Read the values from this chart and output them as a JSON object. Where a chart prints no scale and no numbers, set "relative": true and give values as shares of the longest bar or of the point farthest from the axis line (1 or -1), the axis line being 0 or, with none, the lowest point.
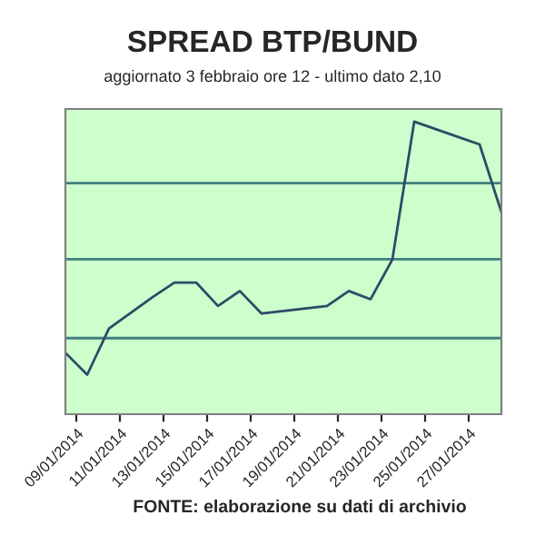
{
  "chart_data": {
    "type": "line",
    "title": "SPREAD BTP/BUND",
    "subtitle": "aggiornato 3 febbraio ore 12 - ultimo dato 2,10",
    "annotations": [
      "FONTE: elaborazione su dati di archivio"
    ],
    "relative": true,
    "x": [
      "2014-01-08T12:00",
      "2014-01-09T12:00",
      "2014-01-10T12:00",
      "2014-01-12T12:00",
      "2014-01-13T12:00",
      "2014-01-14T12:00",
      "2014-01-15T12:00",
      "2014-01-16T12:00",
      "2014-01-17T12:00",
      "2014-01-20T12:00",
      "2014-01-21T12:00",
      "2014-01-22T12:00",
      "2014-01-23T12:00",
      "2014-01-24T12:00",
      "2014-01-27T12:00",
      "2014-01-28T12:00"
    ],
    "series": [
      {
        "color": "#2f4a66",
        "values": [
          0.21,
          0.135,
          0.293,
          0.4,
          0.45,
          0.45,
          0.37,
          0.421,
          0.344,
          0.37,
          0.421,
          0.393,
          0.529,
          1,
          0.922,
          0.691
        ]
      }
    ],
    "xlim": [
      "2014-01-08T12:00",
      "2014-01-28T12:00"
    ],
    "ref_lines": [
      {
        "axis": "y",
        "value": 0.26,
        "color": "#3f7f7f"
      },
      {
        "axis": "y",
        "value": 0.53,
        "color": "#3f7f7f"
      },
      {
        "axis": "y",
        "value": 0.79,
        "color": "#3f7f7f"
      }
    ],
    "xticks": [
      {
        "value": "2014-01-09",
        "label": "09/01/2014"
      },
      {
        "value": "2014-01-11",
        "label": "11/01/2014"
      },
      {
        "value": "2014-01-13",
        "label": "13/01/2014"
      },
      {
        "value": "2014-01-15",
        "label": "15/01/2014"
      },
      {
        "value": "2014-01-17",
        "label": "17/01/2014"
      },
      {
        "value": "2014-01-19",
        "label": "19/01/2014"
      },
      {
        "value": "2014-01-21",
        "label": "21/01/2014"
      },
      {
        "value": "2014-01-23",
        "label": "23/01/2014"
      },
      {
        "value": "2014-01-25",
        "label": "25/01/2014"
      },
      {
        "value": "2014-01-27",
        "label": "27/01/2014"
      }
    ],
    "legend": false,
    "marker": "none",
    "line_style": "solid"
  }
}
